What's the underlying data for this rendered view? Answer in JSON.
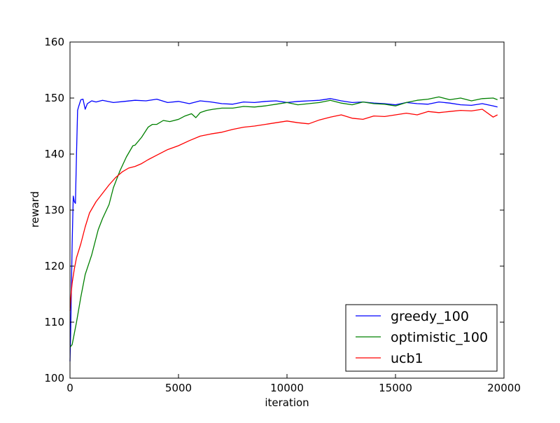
{
  "chart_data": {
    "type": "line",
    "xlabel": "iteration",
    "ylabel": "reward",
    "xlim": [
      0,
      20000
    ],
    "ylim": [
      100,
      160
    ],
    "xticks": [
      0,
      5000,
      10000,
      15000,
      20000
    ],
    "yticks": [
      100,
      110,
      120,
      130,
      140,
      150,
      160
    ],
    "xtick_labels": [
      "0",
      "5000",
      "10000",
      "15000",
      "20000"
    ],
    "ytick_labels": [
      "100",
      "110",
      "120",
      "130",
      "140",
      "150",
      "160"
    ],
    "grid": false,
    "legend_position": "bottom-right",
    "series": [
      {
        "name": "greedy_100",
        "color": "#0000ff",
        "x": [
          0,
          30,
          60,
          100,
          150,
          200,
          250,
          300,
          350,
          400,
          500,
          600,
          700,
          800,
          1000,
          1200,
          1500,
          2000,
          2500,
          3000,
          3500,
          4000,
          4500,
          5000,
          5500,
          6000,
          6500,
          7000,
          7500,
          8000,
          8500,
          9000,
          9500,
          10000,
          10500,
          11000,
          11500,
          12000,
          12500,
          13000,
          13500,
          14000,
          14500,
          15000,
          15500,
          16000,
          16500,
          17000,
          17500,
          18000,
          18500,
          19000,
          19500,
          19700
        ],
        "y": [
          103,
          108,
          115,
          124,
          132.5,
          131.5,
          131.2,
          140,
          147.8,
          148.5,
          149.7,
          149.8,
          148,
          149,
          149.5,
          149.3,
          149.6,
          149.2,
          149.4,
          149.6,
          149.5,
          149.8,
          149.2,
          149.4,
          149.0,
          149.5,
          149.3,
          149.0,
          148.9,
          149.3,
          149.2,
          149.4,
          149.5,
          149.2,
          149.4,
          149.5,
          149.6,
          149.9,
          149.5,
          149.2,
          149.3,
          149.1,
          149.0,
          148.8,
          149.2,
          149.0,
          148.9,
          149.3,
          149.1,
          148.8,
          148.7,
          149.0,
          148.6,
          148.4
        ]
      },
      {
        "name": "optimistic_100",
        "color": "#008000",
        "x": [
          0,
          100,
          200,
          300,
          500,
          700,
          1000,
          1300,
          1500,
          1800,
          2000,
          2300,
          2600,
          2900,
          3000,
          3300,
          3600,
          3800,
          4000,
          4300,
          4600,
          5000,
          5300,
          5600,
          5800,
          6000,
          6300,
          6600,
          7000,
          7500,
          8000,
          8500,
          9000,
          9500,
          10000,
          10500,
          11000,
          11500,
          12000,
          12500,
          13000,
          13500,
          14000,
          14500,
          15000,
          15500,
          16000,
          16500,
          17000,
          17500,
          18000,
          18500,
          19000,
          19500,
          19700
        ],
        "y": [
          105.5,
          106,
          108,
          110,
          114.5,
          118.5,
          122,
          126.5,
          128.5,
          131,
          134,
          137,
          139.5,
          141.5,
          141.6,
          143,
          144.8,
          145.3,
          145.3,
          146,
          145.8,
          146.2,
          146.8,
          147.2,
          146.5,
          147.4,
          147.8,
          148.0,
          148.2,
          148.2,
          148.5,
          148.4,
          148.6,
          148.9,
          149.2,
          148.8,
          149.0,
          149.2,
          149.6,
          149.1,
          148.8,
          149.3,
          149.0,
          148.9,
          148.6,
          149.2,
          149.6,
          149.8,
          150.2,
          149.7,
          150.0,
          149.5,
          149.9,
          150.0,
          149.7
        ]
      },
      {
        "name": "ucb1",
        "color": "#ff0000",
        "x": [
          0,
          50,
          100,
          200,
          300,
          500,
          700,
          900,
          1200,
          1500,
          1800,
          2100,
          2400,
          2700,
          3000,
          3300,
          3600,
          4000,
          4500,
          5000,
          5500,
          6000,
          6500,
          7000,
          7500,
          8000,
          8500,
          9000,
          9500,
          10000,
          10500,
          11000,
          11500,
          12000,
          12500,
          13000,
          13500,
          14000,
          14500,
          15000,
          15500,
          16000,
          16500,
          17000,
          17500,
          18000,
          18500,
          19000,
          19500,
          19700
        ],
        "y": [
          112,
          115,
          117,
          119.5,
          121.5,
          124,
          127,
          129.5,
          131.5,
          133,
          134.5,
          135.8,
          136.8,
          137.5,
          137.8,
          138.3,
          139.0,
          139.8,
          140.8,
          141.5,
          142.4,
          143.2,
          143.6,
          143.9,
          144.4,
          144.8,
          145.0,
          145.3,
          145.6,
          145.9,
          145.6,
          145.4,
          146.1,
          146.6,
          147.0,
          146.4,
          146.2,
          146.8,
          146.7,
          147.0,
          147.3,
          147.0,
          147.6,
          147.4,
          147.6,
          147.8,
          147.7,
          148.0,
          146.6,
          147.0
        ]
      }
    ]
  }
}
